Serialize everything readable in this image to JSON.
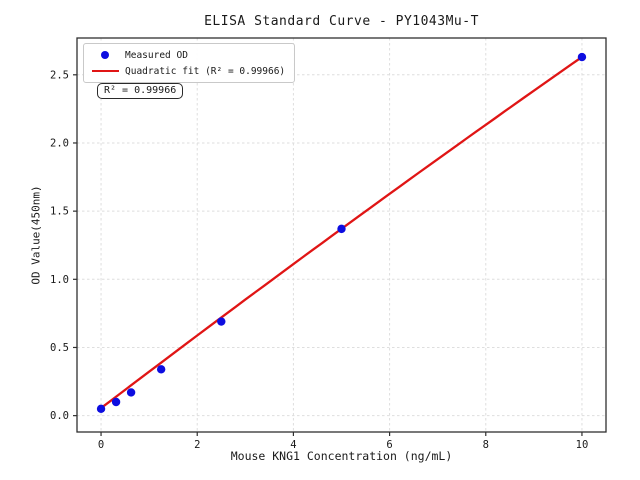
{
  "figure": {
    "background": "#ffffff"
  },
  "chart_data": {
    "type": "scatter",
    "title": "ELISA Standard Curve - PY1043Mu-T",
    "xlabel": "Mouse KNG1 Concentration (ng/mL)",
    "ylabel": "OD Value(450nm)",
    "xlim": [
      -0.5,
      10.5
    ],
    "ylim": [
      -0.12,
      2.77
    ],
    "grid": true,
    "x_ticks": [
      0,
      2,
      4,
      6,
      8,
      10
    ],
    "x_tick_labels": [
      "0",
      "2",
      "4",
      "6",
      "8",
      "10"
    ],
    "y_ticks": [
      0.0,
      0.5,
      1.0,
      1.5,
      2.0,
      2.5
    ],
    "y_tick_labels": [
      "0.0",
      "0.5",
      "1.0",
      "1.5",
      "2.0",
      "2.5"
    ],
    "series": [
      {
        "name": "Measured OD",
        "type": "scatter",
        "x": [
          0,
          0.3125,
          0.625,
          1.25,
          2.5,
          5,
          10
        ],
        "y": [
          0.05,
          0.1,
          0.17,
          0.34,
          0.69,
          1.37,
          2.63
        ]
      },
      {
        "name": "Quadratic fit (R² = 0.99966)",
        "type": "line",
        "fit": "quadratic",
        "coefficients": {
          "a": -0.0011,
          "b": 0.2686,
          "c": 0.055
        },
        "r_squared": 0.99966,
        "x_range": [
          0,
          10
        ]
      }
    ],
    "legend": {
      "position": "upper-left",
      "items": [
        {
          "label": "Measured OD",
          "marker": "circle",
          "color": "#0d0de0"
        },
        {
          "label": "Quadratic fit (R² = 0.99966)",
          "marker": "line",
          "color": "#e01515"
        }
      ]
    },
    "annotation": {
      "text": "R² = 0.99966"
    },
    "colors": {
      "points": "#0d0de0",
      "fit_line": "#e01515",
      "grid": "#dedede",
      "spine": "#2f2f2f",
      "tick_text": "#1a1a1a"
    }
  }
}
